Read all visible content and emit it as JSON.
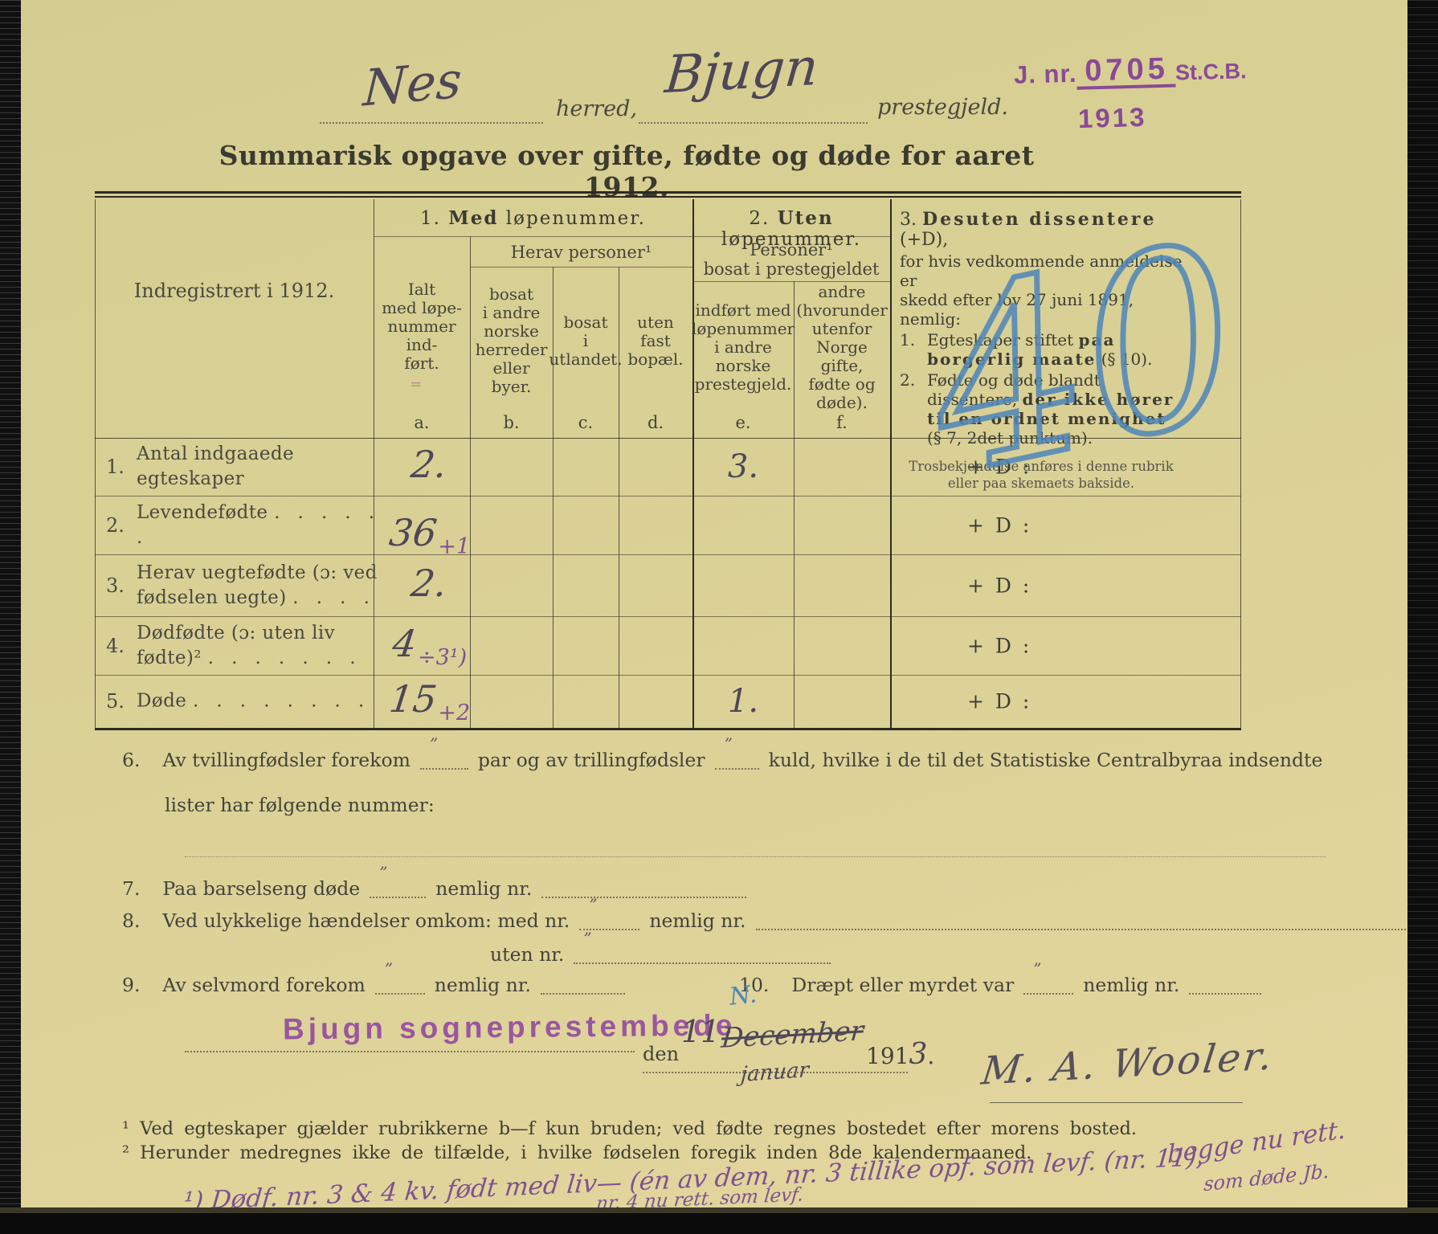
{
  "colors": {
    "paper": "#d9d096",
    "print_ink": "#43423a",
    "handwriting_ink": "#4e4757",
    "purple_ink": "#8a4f95",
    "blue_pencil": "#4e86ba"
  },
  "stamp": {
    "jnr": "J. nr.",
    "number": "0705",
    "office": "St.C.B.",
    "year": "1913"
  },
  "header": {
    "herred_value": "Nes",
    "herred_label": "herred,",
    "prestegjeld_value": "Bjugn",
    "prestegjeld_label": "prestegjeld.",
    "title": "Summarisk opgave over gifte, fødte og døde for aaret 1912."
  },
  "scan": {
    "blue_scrawl": "40",
    "pink_mark": "="
  },
  "table": {
    "corner": "Indregistrert i 1912.",
    "g1": {
      "n": "1.",
      "b": "Med",
      "r": " løpenummer."
    },
    "g2": {
      "n": "2.",
      "b": "Uten",
      "r": " løpenummer."
    },
    "herav": "Herav personer¹",
    "personer": "Personer¹\nbosat i prestegjeldet",
    "col_a": "Ialt\nmed løpe-\nnummer ind-\nført.",
    "col_b": "bosat\ni andre\nnorske\nherreder\neller\nbyer.",
    "col_c": "bosat\ni\nutlandet.",
    "col_d": "uten\nfast\nbopæl.",
    "col_e": "indført med\nløpenummer\ni andre\nnorske\nprestegjeld.",
    "col_f": "andre\n(hvorunder\nutenfor\nNorge gifte,\nfødte og\ndøde).",
    "letters": {
      "a": "a.",
      "b": "b.",
      "c": "c.",
      "d": "d.",
      "e": "e.",
      "f": "f."
    },
    "g3": {
      "n": "3.",
      "b": "Desuten dissentere",
      "r": " (+D),",
      "intro": "for hvis vedkommende anmeldelse er\nskedd efter lov 27 juni 1891, nemlig:",
      "i1n": "1.",
      "i1a": "Egteskaper stiftet ",
      "i1b": "paa borgerlig maate",
      "i1c": " (§ 10).",
      "i2n": "2.",
      "i2a": "Fødte og døde blandt dissentere, ",
      "i2b": "der ikke hører til en ordnet menighet",
      "i2c": " (§ 7, 2det punktum).",
      "note": "Trosbekjendelse anføres i denne rubrik\neller paa skemaets bakside."
    },
    "plus_d": "+ D :",
    "rows": [
      {
        "num": "1.",
        "label": "Antal indgaaede egteskaper",
        "dots": "",
        "a": "2.",
        "a2": "",
        "e": "3."
      },
      {
        "num": "2.",
        "label": "Levendefødte",
        "dots": ".  .  .  .  .  .",
        "a": "36",
        "a2": "+1",
        "e": ""
      },
      {
        "num": "3.",
        "label": "Herav uegtefødte (ɔ: ved fødselen uegte)",
        "dots": ".  .  .  .",
        "a": "2.",
        "a2": "",
        "e": ""
      },
      {
        "num": "4.",
        "label": "Dødfødte (ɔ: uten liv fødte)²",
        "dots": ".  .  .  .  .  .  .",
        "a": "4",
        "a2": "÷3¹)",
        "e": ""
      },
      {
        "num": "5.",
        "label": "Døde",
        "dots": ".  .  .  .  .  .  .  .",
        "a": "15",
        "a2": "+2",
        "e": "1."
      }
    ]
  },
  "sections": {
    "ditto": "”",
    "s6": {
      "num": "6.",
      "t1": "Av tvillingfødsler forekom",
      "t2": "par og av trillingfødsler",
      "t3": "kuld, hvilke i de til det Statistiske Centralbyraa indsendte",
      "t4": "lister har følgende nummer:"
    },
    "s7": {
      "num": "7.",
      "t1": "Paa barselseng døde",
      "t2": "nemlig nr."
    },
    "s8": {
      "num": "8.",
      "t1": "Ved ulykkelige hændelser omkom:  med nr.",
      "t2": "nemlig nr.",
      "t3": "uten nr."
    },
    "s9": {
      "num": "9.",
      "t1": "Av selvmord forekom",
      "t2": "nemlig nr."
    },
    "s10": {
      "num": "10.",
      "t1": "Dræpt eller myrdet var",
      "t2": "nemlig nr."
    }
  },
  "signature": {
    "stamp": "Bjugn sogneprestembede",
    "den": "den",
    "day": "11",
    "month_struck": "December",
    "month_new": "januar",
    "year_printed": "191",
    "year_digit": "3",
    "period": ".",
    "blue_mark": "N.",
    "name": "M. A. Wooler."
  },
  "footnotes": {
    "f1": "¹ Ved egteskaper gjælder rubrikkerne b—f kun bruden; ved fødte regnes bostedet efter morens bosted.",
    "f2": "² Herunder medregnes ikke de tilfælde, i hvilke fødselen foregik inden 8de kalendermaaned."
  },
  "hw_notes": {
    "n1": "¹) Dødf. nr. 3 & 4 kv. født med liv— (én av dem, nr. 3 tillike opf. som levf. (nr. 11),",
    "n1b": "begge nu rett.",
    "n1c": "som døde Jb.",
    "n2": "nr. 4 nu rett. som levf."
  }
}
